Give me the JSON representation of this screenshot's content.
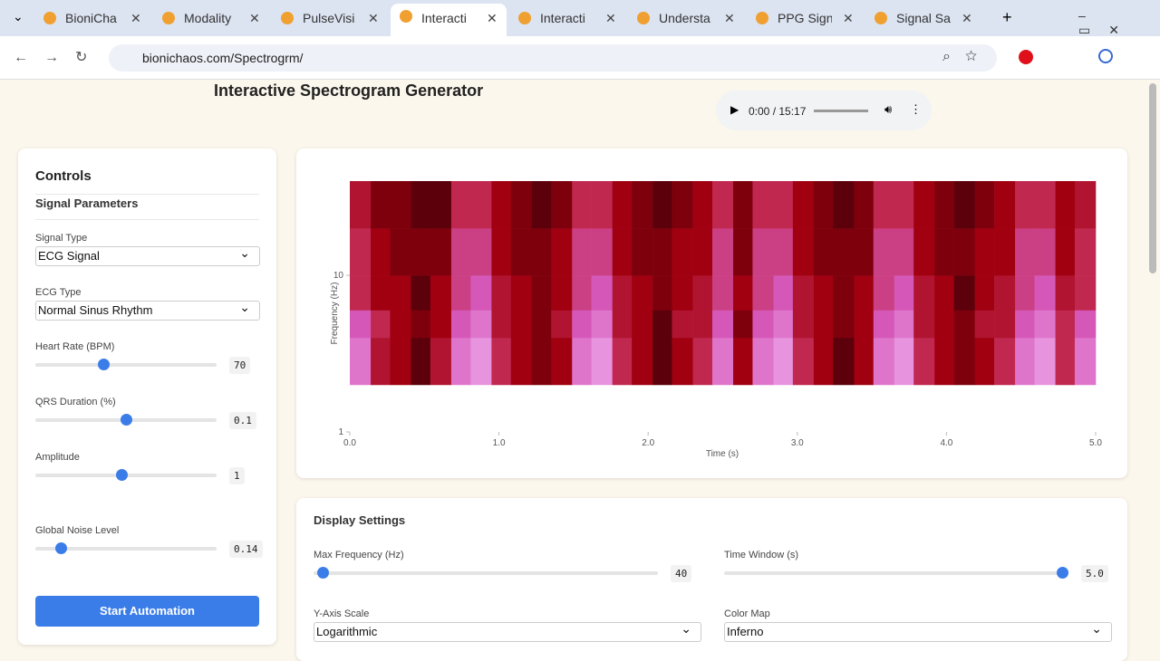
{
  "browser": {
    "tabs": [
      "BioniCha",
      "Modality",
      "PulseVisi",
      "Interacti",
      "Interacti",
      "Understa",
      "PPG Sign",
      "Signal Sa"
    ],
    "active_tab": 3,
    "url": "bionichaos.com/Spectrogrm/"
  },
  "page": {
    "title": "Interactive Spectrogram Generator",
    "audio_time": "0:00 / 15:17"
  },
  "controls": {
    "heading": "Controls",
    "section": "Signal Parameters",
    "selects": [
      {
        "label": "Signal Type",
        "value": "ECG Signal"
      },
      {
        "label": "ECG Type",
        "value": "Normal Sinus Rhythm"
      }
    ],
    "sliders": [
      {
        "label": "Heart Rate (BPM)",
        "value": 70,
        "range": [
          40,
          120
        ]
      },
      {
        "label": "QRS Duration (%)",
        "value": 0.1,
        "range": [
          0.05,
          0.15
        ]
      },
      {
        "label": "Amplitude",
        "value": 1,
        "range": [
          0.1,
          2
        ]
      },
      {
        "label": "Global Noise Level",
        "value": 0.14,
        "range": [
          0,
          1
        ]
      }
    ],
    "button": "Start Automation"
  },
  "display": {
    "heading": "Display Settings",
    "sliders": [
      {
        "label": "Max Frequency (Hz)",
        "value": 40,
        "range": [
          30,
          400
        ]
      },
      {
        "label": "Time Window (s)",
        "value": {
          "value": 5,
          "label": "5.0"
        },
        "range": [
          1,
          5.08
        ]
      }
    ],
    "selects": [
      {
        "label": "Y-Axis Scale",
        "value": "Logarithmic"
      },
      {
        "label": "Color Map",
        "value": "Inferno"
      }
    ]
  },
  "chart_data": {
    "type": "heatmap",
    "xlabel": "Time (s)",
    "ylabel": "Frequency (Hz)",
    "log_y": true,
    "xlim": [
      0,
      5
    ],
    "ylim": [
      1,
      40
    ],
    "xticks": [
      {
        "value": 0,
        "label": "0.0"
      },
      {
        "value": 1,
        "label": "1.0"
      },
      {
        "value": 2,
        "label": "2.0"
      },
      {
        "value": 3,
        "label": "3.0"
      },
      {
        "value": 4,
        "label": "4.0"
      },
      {
        "value": 5,
        "label": "5.0"
      }
    ],
    "yticks": [
      1,
      10
    ],
    "x_bins": [
      0,
      0.14,
      0.27,
      0.41,
      0.54,
      0.68,
      0.81,
      0.95,
      1.08,
      1.22,
      1.35,
      1.49,
      1.62,
      1.76,
      1.89,
      2.03,
      2.16,
      2.3,
      2.43,
      2.57,
      2.7,
      2.84,
      2.97,
      3.11,
      3.24,
      3.38,
      3.51,
      3.65,
      3.78,
      3.92,
      4.05,
      4.19,
      4.32,
      4.46,
      4.59,
      4.73,
      4.86,
      5.0
    ],
    "y_bins": [
      2,
      4,
      6,
      10,
      20,
      40
    ],
    "z": [
      [
        0.8,
        0.4,
        0.3,
        0.1,
        0.4,
        0.8,
        0.9,
        0.5,
        0.3,
        0.2,
        0.3,
        0.8,
        0.9,
        0.5,
        0.3,
        0.1,
        0.3,
        0.5,
        0.8,
        0.3,
        0.8,
        0.9,
        0.5,
        0.3,
        0.1,
        0.3,
        0.8,
        0.9,
        0.5,
        0.3,
        0.2,
        0.3,
        0.5,
        0.8,
        0.9,
        0.5,
        0.8
      ],
      [
        0.7,
        0.5,
        0.3,
        0.2,
        0.3,
        0.7,
        0.8,
        0.4,
        0.3,
        0.2,
        0.4,
        0.7,
        0.8,
        0.4,
        0.3,
        0.1,
        0.4,
        0.4,
        0.7,
        0.2,
        0.7,
        0.8,
        0.4,
        0.3,
        0.2,
        0.3,
        0.7,
        0.8,
        0.4,
        0.3,
        0.2,
        0.4,
        0.4,
        0.7,
        0.8,
        0.5,
        0.7
      ],
      [
        0.5,
        0.3,
        0.3,
        0.1,
        0.3,
        0.6,
        0.7,
        0.4,
        0.3,
        0.2,
        0.3,
        0.6,
        0.7,
        0.4,
        0.3,
        0.2,
        0.3,
        0.4,
        0.6,
        0.3,
        0.6,
        0.7,
        0.4,
        0.3,
        0.2,
        0.3,
        0.6,
        0.7,
        0.4,
        0.3,
        0.1,
        0.3,
        0.4,
        0.6,
        0.7,
        0.4,
        0.5
      ],
      [
        0.5,
        0.3,
        0.2,
        0.2,
        0.2,
        0.6,
        0.6,
        0.3,
        0.2,
        0.2,
        0.3,
        0.6,
        0.6,
        0.3,
        0.2,
        0.2,
        0.3,
        0.3,
        0.6,
        0.2,
        0.6,
        0.6,
        0.3,
        0.2,
        0.2,
        0.2,
        0.6,
        0.6,
        0.3,
        0.2,
        0.2,
        0.3,
        0.3,
        0.6,
        0.6,
        0.3,
        0.5
      ],
      [
        0.4,
        0.2,
        0.2,
        0.1,
        0.1,
        0.5,
        0.5,
        0.3,
        0.2,
        0.1,
        0.2,
        0.5,
        0.5,
        0.3,
        0.2,
        0.1,
        0.2,
        0.3,
        0.5,
        0.2,
        0.5,
        0.5,
        0.3,
        0.2,
        0.1,
        0.2,
        0.5,
        0.5,
        0.3,
        0.2,
        0.1,
        0.2,
        0.3,
        0.5,
        0.5,
        0.3,
        0.4
      ],
      [
        0.4,
        0.2,
        0.1,
        0.1,
        0.2,
        0.5,
        0.5,
        0.2,
        0.2,
        0.1,
        0.2,
        0.5,
        0.5,
        0.2,
        0.1,
        0.1,
        0.2,
        0.2,
        0.5,
        0.2,
        0.5,
        0.5,
        0.2,
        0.2,
        0.1,
        0.1,
        0.5,
        0.5,
        0.2,
        0.2,
        0.1,
        0.2,
        0.2,
        0.5,
        0.5,
        0.2,
        0.4
      ]
    ]
  }
}
